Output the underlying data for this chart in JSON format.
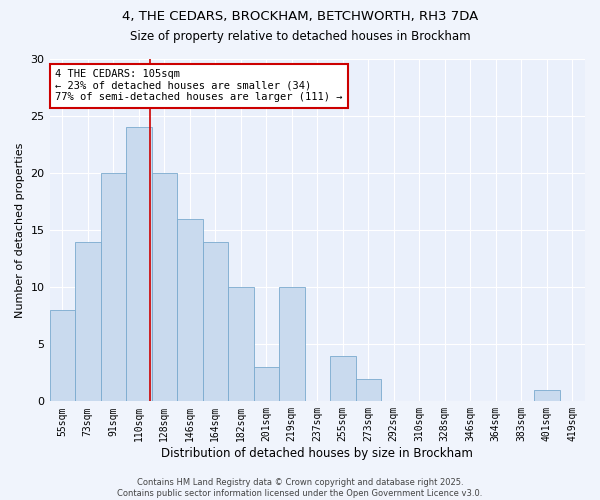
{
  "title_line1": "4, THE CEDARS, BROCKHAM, BETCHWORTH, RH3 7DA",
  "title_line2": "Size of property relative to detached houses in Brockham",
  "xlabel": "Distribution of detached houses by size in Brockham",
  "ylabel": "Number of detached properties",
  "categories": [
    "55sqm",
    "73sqm",
    "91sqm",
    "110sqm",
    "128sqm",
    "146sqm",
    "164sqm",
    "182sqm",
    "201sqm",
    "219sqm",
    "237sqm",
    "255sqm",
    "273sqm",
    "292sqm",
    "310sqm",
    "328sqm",
    "346sqm",
    "364sqm",
    "383sqm",
    "401sqm",
    "419sqm"
  ],
  "values": [
    8,
    14,
    20,
    24,
    20,
    16,
    14,
    10,
    3,
    10,
    0,
    4,
    2,
    0,
    0,
    0,
    0,
    0,
    0,
    1,
    0
  ],
  "bar_color": "#c9daee",
  "bar_edge_color": "#7aaace",
  "background_color": "#eaf0fb",
  "grid_color": "#ffffff",
  "fig_color": "#f0f4fc",
  "annotation_box_color": "#cc0000",
  "vline_color": "#cc0000",
  "vline_position": 3.45,
  "annotation_text": "4 THE CEDARS: 105sqm\n← 23% of detached houses are smaller (34)\n77% of semi-detached houses are larger (111) →",
  "footer_text": "Contains HM Land Registry data © Crown copyright and database right 2025.\nContains public sector information licensed under the Open Government Licence v3.0.",
  "ylim": [
    0,
    30
  ],
  "yticks": [
    0,
    5,
    10,
    15,
    20,
    25,
    30
  ]
}
